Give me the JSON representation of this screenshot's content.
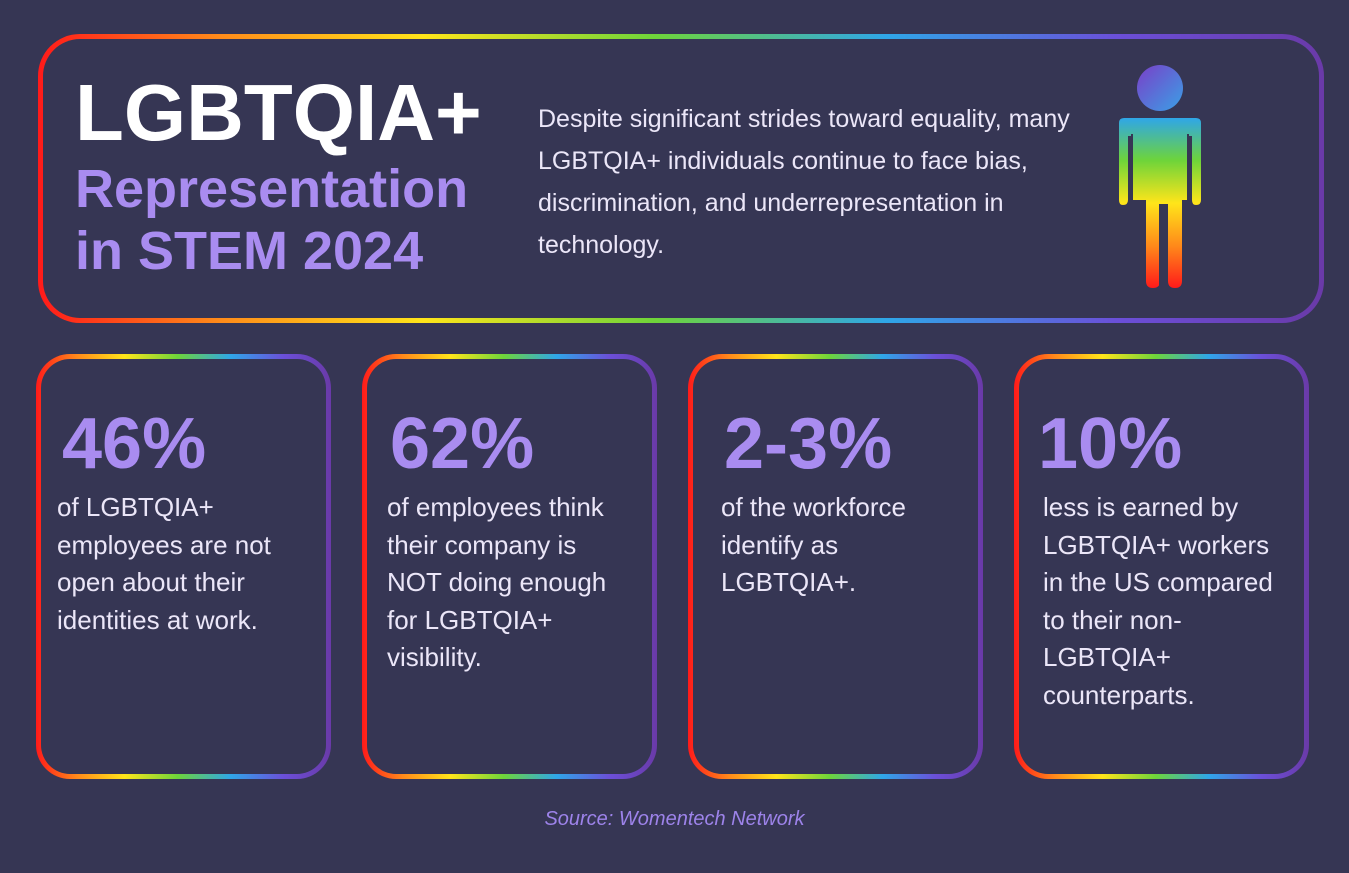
{
  "header": {
    "title_line1": "LGBTQIA+",
    "title_line2": "Representation",
    "title_line3": "in STEM 2024",
    "intro": "Despite significant strides toward equality, many LGBTQIA+ individuals continue to face bias, discrimination, and underrepresentation in technology.",
    "figure_icon": "rainbow-person-icon"
  },
  "stats": [
    {
      "value": "46%",
      "description": "of LGBTQIA+ employees are not open about their identities at work."
    },
    {
      "value": "62%",
      "description": "of employees think their company is NOT doing enough for LGBTQIA+ visibility."
    },
    {
      "value": "2-3%",
      "description": "of the workforce identify as LGBTQIA+."
    },
    {
      "value": "10%",
      "description": "less is earned by LGBTQIA+ workers in the US compared to their non-LGBTQIA+ counterparts."
    }
  ],
  "source": "Source: Womentech Network",
  "colors": {
    "background": "#363654",
    "accent_purple": "#a98cf0",
    "text_light": "#ebe6f8",
    "rainbow": [
      "#ff1a1a",
      "#ff8a1a",
      "#ffe51a",
      "#6ed43a",
      "#2fa6e8",
      "#6b4fd8",
      "#6a3aa8"
    ]
  }
}
